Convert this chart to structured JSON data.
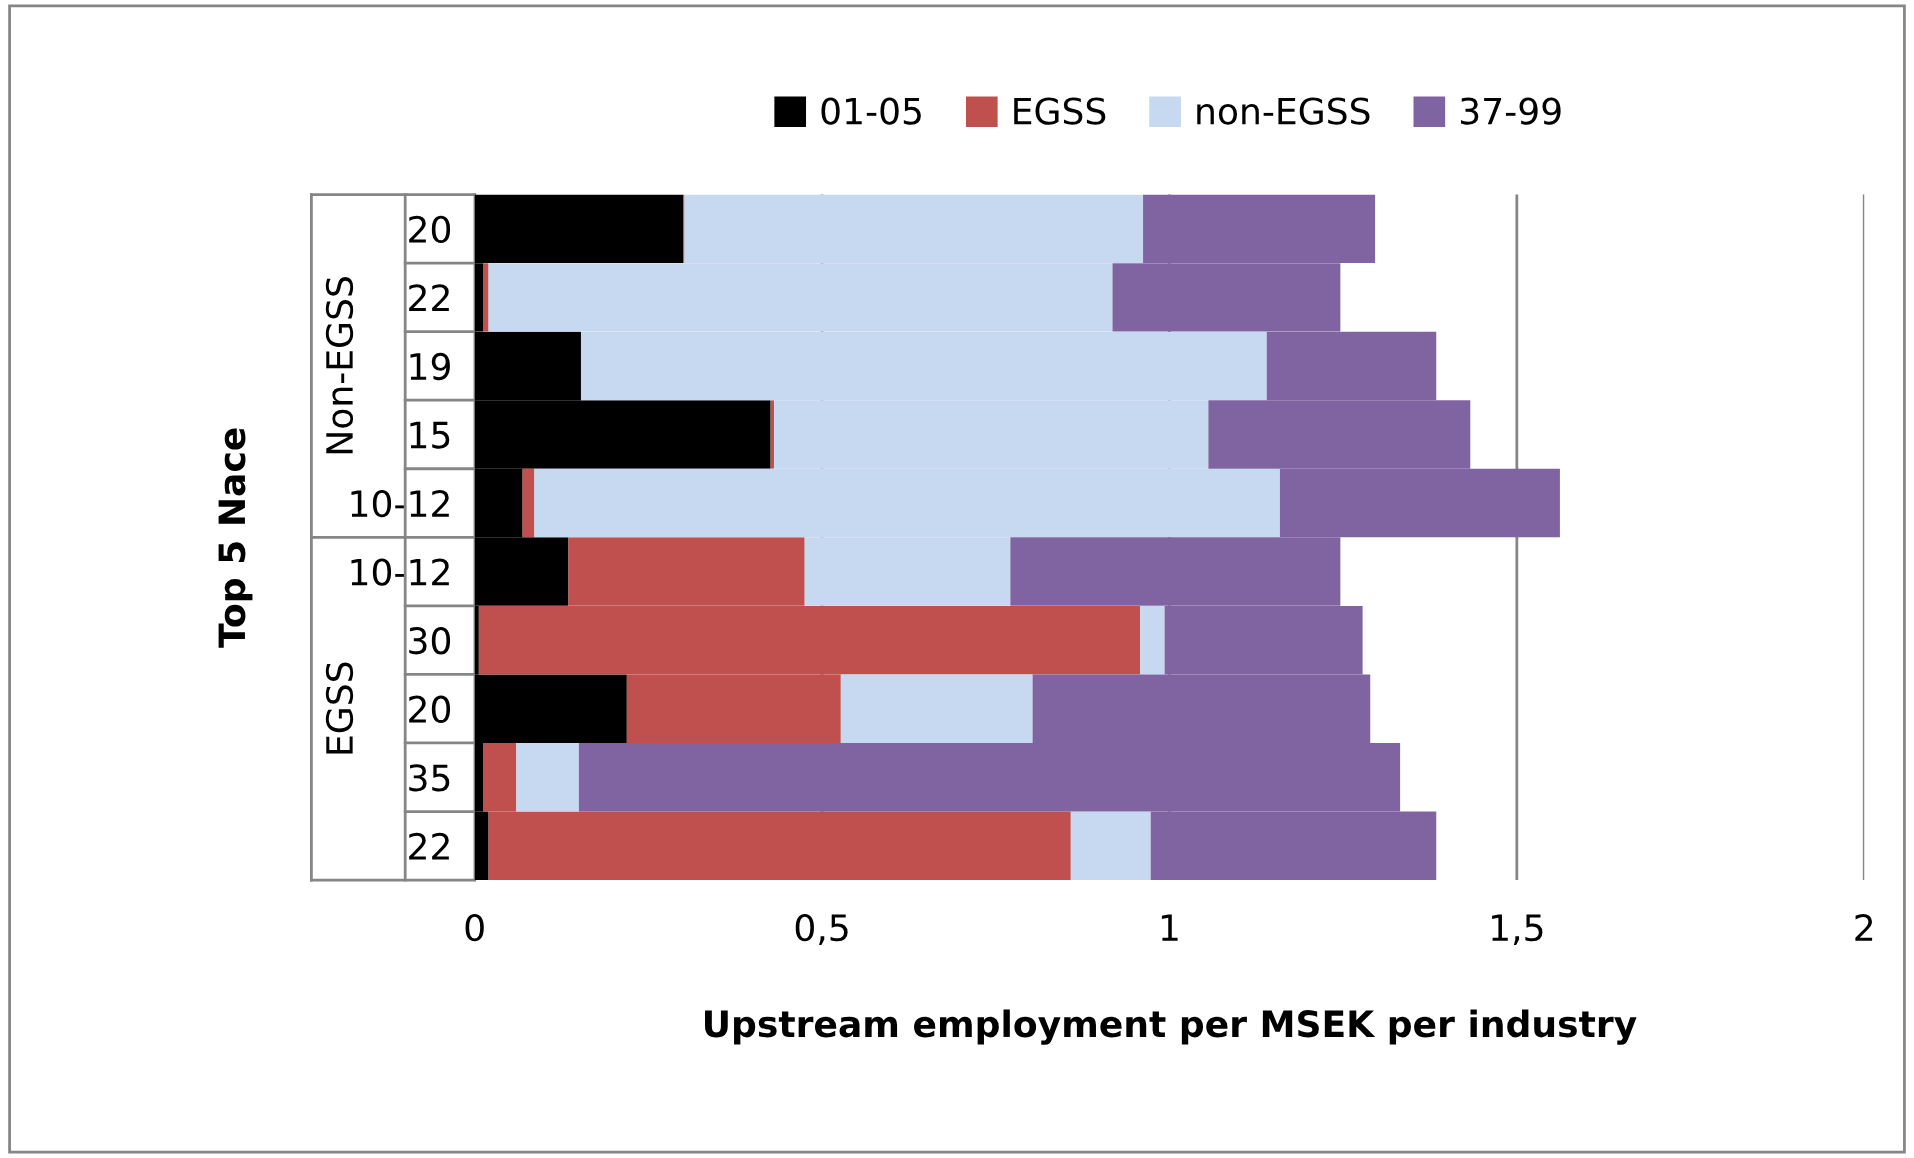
{
  "chart_data": {
    "type": "bar",
    "orientation": "horizontal",
    "stacked": true,
    "xlabel": "Upstream employment per MSEK per industry",
    "ylabel": "Top 5 Nace",
    "categories": [
      "20",
      "22",
      "19",
      "15",
      "10-12",
      "10-12",
      "30",
      "20",
      "35",
      "22"
    ],
    "series": [
      {
        "name": "01-05",
        "color": "#000000",
        "values": [
          0.3,
          0.012,
          0.153,
          0.426,
          0.069,
          0.135,
          0.006,
          0.219,
          0.012,
          0.02
        ]
      },
      {
        "name": "EGSS",
        "color": "#c0504d",
        "values": [
          0.002,
          0.008,
          0,
          0.005,
          0.017,
          0.34,
          0.952,
          0.308,
          0.048,
          0.838
        ]
      },
      {
        "name": "non-EGSS",
        "color": "#c6d9f1",
        "values": [
          0.66,
          0.898,
          0.987,
          0.625,
          1.073,
          0.296,
          0.035,
          0.276,
          0.09,
          0.115
        ]
      },
      {
        "name": "37-99",
        "color": "#8064a2",
        "values": [
          0.334,
          0.328,
          0.244,
          0.377,
          0.403,
          0.475,
          0.285,
          0.486,
          1.182,
          0.411
        ]
      }
    ],
    "annotations": [
      "Non-EGSS",
      "EGSS"
    ],
    "xlim": [
      0,
      2
    ],
    "xticks": [
      0,
      {
        "value": 0.5,
        "label": "0,5"
      },
      1,
      {
        "value": 1.5,
        "label": "1,5"
      },
      2
    ],
    "grid": "x",
    "legend": "top"
  }
}
